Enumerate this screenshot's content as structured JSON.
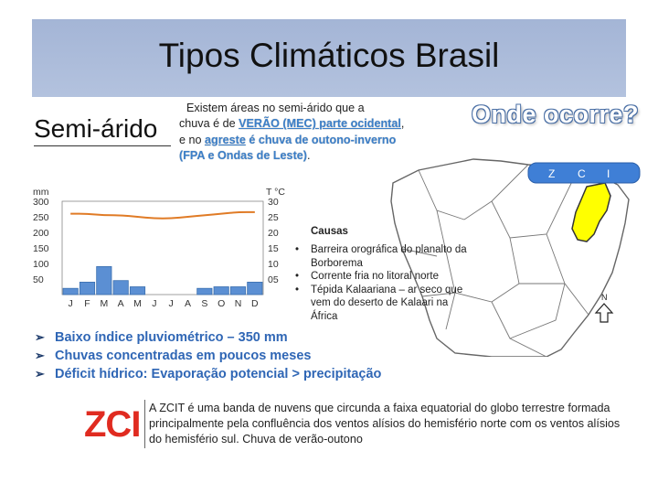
{
  "slide": {
    "title": "Tipos Climáticos Brasil",
    "region": "Semi-árido",
    "intro": {
      "line1": "Existem áreas no semi-árido que a",
      "line2a": "chuva é de ",
      "line2b": "VERÃO (MEC) parte ocidental",
      "line2c": ",",
      "line3a": "e no ",
      "line3b": "agreste",
      "line3c": " é chuva de outono-inverno",
      "line4": "(FPA e Ondas de Leste)",
      "line4c": "."
    },
    "where_heading": "Onde ocorre?",
    "map": {
      "legend": [
        "Z",
        "C",
        "I"
      ],
      "north": "N",
      "colors": {
        "land": "#ffffff",
        "border": "#666666",
        "semiarid": "#ffff00",
        "band": "#3f7fd6"
      }
    }
  },
  "chart_data": {
    "type": "bar",
    "categories": [
      "J",
      "F",
      "M",
      "A",
      "M",
      "J",
      "J",
      "A",
      "S",
      "O",
      "N",
      "D"
    ],
    "values": [
      20,
      40,
      90,
      45,
      25,
      0,
      0,
      0,
      20,
      25,
      25,
      40
    ],
    "line_values": [
      26,
      26,
      25.5,
      25.5,
      25,
      24.5,
      24.5,
      25,
      25.5,
      26,
      26.5,
      26.5
    ],
    "ylabel_left": "mm",
    "yticks_left": [
      "300",
      "250",
      "200",
      "150",
      "100",
      "50"
    ],
    "ylim_left": [
      0,
      300
    ],
    "ylabel_right": "T °C",
    "yticks_right": [
      "30",
      "25",
      "20",
      "15",
      "10",
      "05"
    ],
    "ylim_right": [
      0,
      30
    ],
    "colors": {
      "bars": "#5b8fd3",
      "bar_outline": "#3b6fb0",
      "line": "#e07b26"
    }
  },
  "causes": {
    "title": "Causas",
    "items": [
      "Barreira orográfica do planalto da Borborema",
      "Corrente fria no litoral norte",
      "Tépida Kalaariana – ar seco que vem do deserto de Kalaari na África"
    ]
  },
  "bullets": [
    "Baixo índice pluviométrico – 350 mm",
    "Chuvas concentradas em poucos meses",
    "Déficit hídrico: Evaporação potencial > precipitação"
  ],
  "zcit": {
    "label": "ZCI",
    "text": "A ZCIT é uma banda de nuvens que circunda a faixa equatorial do globo terrestre formada principalmente pela confluência dos ventos alísios do hemisfério norte com os ventos alísios do hemisfério sul. Chuva de verão-outono"
  }
}
